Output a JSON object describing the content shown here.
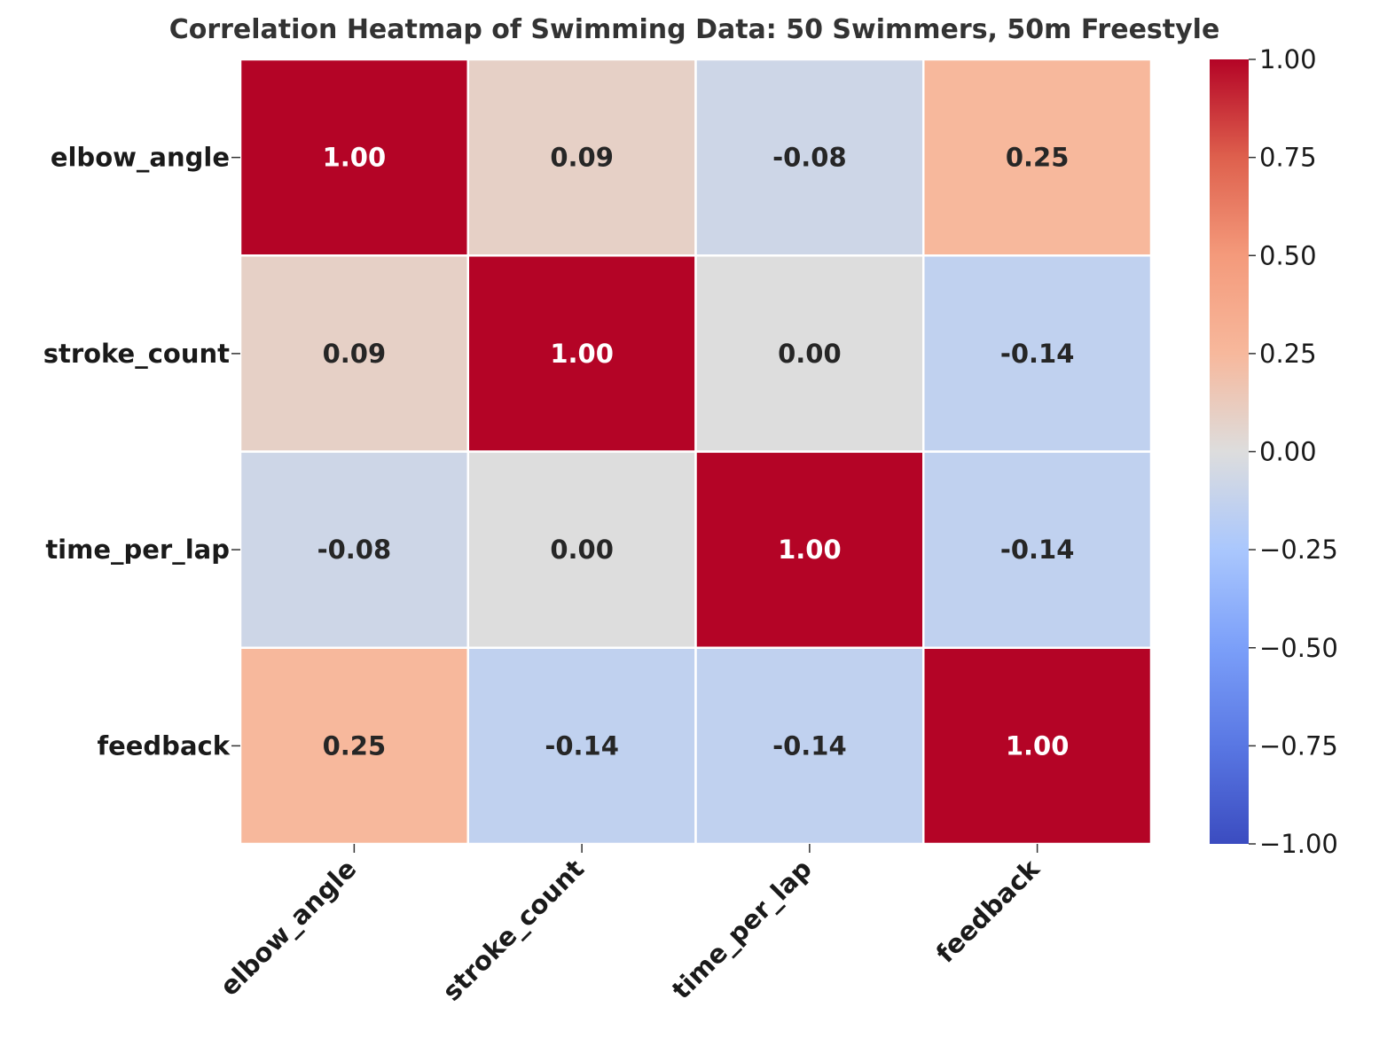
{
  "chart_data": {
    "type": "heatmap",
    "title": "Correlation Heatmap of Swimming Data: 50 Swimmers, 50m Freestyle",
    "xlabel": "",
    "ylabel": "",
    "x_categories": [
      "elbow_angle",
      "stroke_count",
      "time_per_lap",
      "feedback"
    ],
    "y_categories": [
      "elbow_angle",
      "stroke_count",
      "time_per_lap",
      "feedback"
    ],
    "values": [
      [
        1.0,
        0.09,
        -0.08,
        0.25
      ],
      [
        0.09,
        1.0,
        0.0,
        -0.14
      ],
      [
        -0.08,
        0.0,
        1.0,
        -0.14
      ],
      [
        0.25,
        -0.14,
        -0.14,
        1.0
      ]
    ],
    "value_labels": [
      [
        "1.00",
        "0.09",
        "-0.08",
        "0.25"
      ],
      [
        "0.09",
        "1.00",
        "0.00",
        "-0.14"
      ],
      [
        "-0.08",
        "0.00",
        "1.00",
        "-0.14"
      ],
      [
        "0.25",
        "-0.14",
        "-0.14",
        "1.00"
      ]
    ],
    "colormap": "coolwarm",
    "vmin": -1,
    "vmax": 1,
    "colorbar_ticks": [
      "1.00",
      "0.75",
      "0.50",
      "0.25",
      "0.00",
      "−0.25",
      "−0.50",
      "−0.75",
      "−1.00"
    ],
    "colorbar_tick_values": [
      1,
      0.75,
      0.5,
      0.25,
      0,
      -0.25,
      -0.5,
      -0.75,
      -1
    ],
    "legend": "right"
  }
}
